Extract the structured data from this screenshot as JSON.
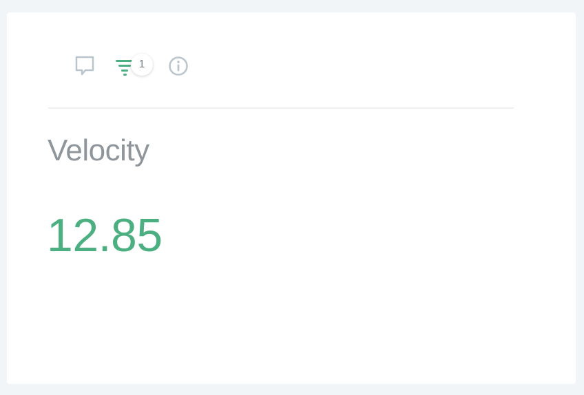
{
  "toolbar": {
    "comment_icon": "comment-icon",
    "filter_icon": "filter-icon",
    "filter_count": "1",
    "info_icon": "info-icon"
  },
  "metric": {
    "label": "Velocity",
    "value": "12.85"
  },
  "colors": {
    "accent": "#4caf82",
    "icon_muted": "#b9c4cc",
    "label_gray": "#8e959b"
  }
}
